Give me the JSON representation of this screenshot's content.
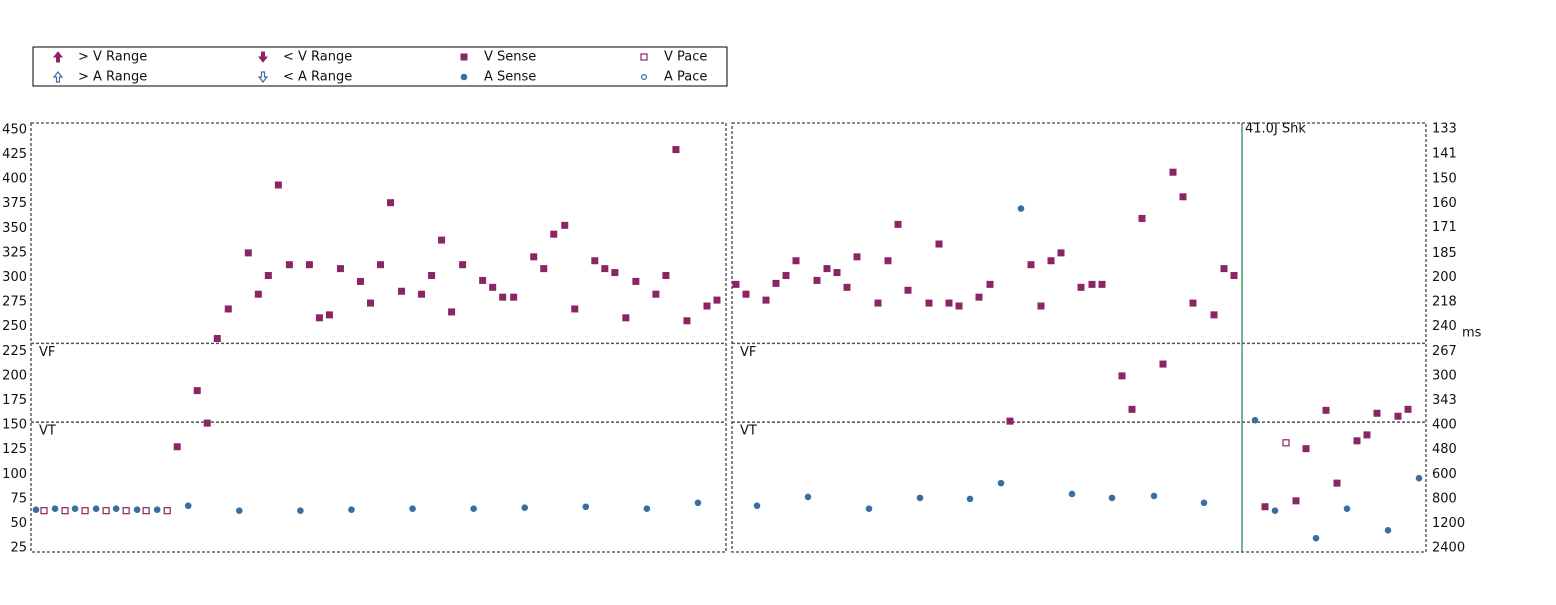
{
  "chart_data": [
    {
      "type": "scatter",
      "xlim": [
        0,
        69.4
      ],
      "ylim": [
        21,
        457
      ],
      "yticks": [
        25,
        50,
        75,
        100,
        125,
        150,
        175,
        200,
        225,
        250,
        275,
        300,
        325,
        350,
        375,
        400,
        425,
        450
      ],
      "zones": [
        {
          "label": "VF",
          "value": 233
        },
        {
          "label": "VT",
          "value": 153
        }
      ],
      "series": [
        {
          "name": "> V Range",
          "color": "#8b2563",
          "marker": "up-filled",
          "x": [],
          "values": []
        },
        {
          "name": "< V Range",
          "color": "#8b2563",
          "marker": "down-filled",
          "x": [],
          "values": []
        },
        {
          "name": "V Sense",
          "color": "#8b2563",
          "marker": "square-filled",
          "x": [
            14.6,
            16.6,
            17.6,
            18.6,
            19.7,
            21.7,
            22.7,
            23.7,
            24.7,
            25.8,
            27.8,
            28.8,
            29.8,
            30.9,
            32.9,
            33.9,
            34.9,
            35.9,
            37.0,
            39.0,
            40.0,
            41.0,
            42.0,
            43.1,
            45.1,
            46.1,
            47.1,
            48.2,
            50.2,
            51.2,
            52.2,
            53.3,
            54.3,
            56.3,
            57.3,
            58.3,
            59.4,
            60.4,
            62.4,
            63.4,
            64.4,
            65.5,
            67.5,
            68.5
          ],
          "values": [
            128,
            185,
            152,
            238,
            268,
            325,
            283,
            302,
            394,
            313,
            313,
            259,
            262,
            309,
            296,
            274,
            313,
            376,
            286,
            283,
            302,
            338,
            265,
            313,
            297,
            290,
            280,
            280,
            321,
            309,
            344,
            353,
            268,
            317,
            309,
            305,
            259,
            296,
            283,
            302,
            430,
            256,
            271,
            277
          ]
        },
        {
          "name": "V Pace",
          "color": "#8b2563",
          "marker": "square-open",
          "x": [
            1.3,
            3.4,
            5.4,
            7.5,
            9.5,
            11.5,
            13.6
          ],
          "values": [
            63,
            63,
            63,
            63,
            63,
            63,
            63
          ]
        },
        {
          "name": "> A Range",
          "color": "#3b6e9e",
          "marker": "up-open",
          "x": [],
          "values": []
        },
        {
          "name": "< A Range",
          "color": "#3b6e9e",
          "marker": "down-open",
          "x": [],
          "values": []
        },
        {
          "name": "A Sense",
          "color": "#3b6e9e",
          "marker": "circle-filled",
          "x": [
            0.5,
            2.4,
            4.4,
            6.5,
            8.5,
            10.6,
            12.6,
            15.7,
            20.8,
            26.9,
            32.0,
            38.1,
            44.2,
            49.3,
            55.4,
            61.5,
            66.6
          ],
          "values": [
            64,
            65,
            65,
            65,
            65,
            64,
            64,
            68,
            63,
            63,
            64,
            65,
            65,
            66,
            67,
            65,
            71
          ]
        },
        {
          "name": "A Pace",
          "color": "#3b6e9e",
          "marker": "circle-open",
          "x": [],
          "values": []
        }
      ]
    },
    {
      "type": "scatter",
      "xlim": [
        0,
        69.4
      ],
      "ylim": [
        21,
        457
      ],
      "y2ticks": [
        133,
        141,
        150,
        160,
        171,
        185,
        200,
        218,
        240,
        267,
        300,
        343,
        400,
        480,
        600,
        800,
        1200,
        2400
      ],
      "y2scale": "reciprocal",
      "y2factor": 60000,
      "y2label": "ms",
      "zones": [
        {
          "label": "VF",
          "value": 233
        },
        {
          "label": "VT",
          "value": 153
        }
      ],
      "annotation": {
        "text": "41.0J Shk",
        "x": 51.0,
        "color": "#2e8b57"
      },
      "series": [
        {
          "name": "> V Range",
          "color": "#8b2563",
          "marker": "up-filled",
          "x": [],
          "values": []
        },
        {
          "name": "< V Range",
          "color": "#8b2563",
          "marker": "down-filled",
          "x": [],
          "values": []
        },
        {
          "name": "V Sense",
          "color": "#8b2563",
          "marker": "square-filled",
          "x": [
            0.4,
            1.4,
            3.4,
            4.4,
            5.4,
            6.4,
            8.5,
            9.5,
            10.5,
            11.5,
            12.5,
            14.6,
            15.6,
            16.6,
            17.6,
            19.7,
            20.7,
            21.7,
            22.7,
            24.7,
            25.8,
            27.8,
            29.9,
            30.9,
            31.9,
            32.9,
            34.9,
            36.0,
            37.0,
            39.0,
            40.0,
            41.0,
            43.1,
            44.1,
            45.1,
            46.1,
            48.2,
            49.2,
            50.2,
            53.3,
            56.4,
            57.4,
            59.4,
            60.5,
            62.5,
            63.5,
            64.5,
            66.6,
            67.6
          ],
          "values": [
            293,
            283,
            277,
            294,
            302,
            317,
            297,
            309,
            305,
            290,
            321,
            274,
            317,
            354,
            287,
            274,
            334,
            274,
            271,
            280,
            293,
            154,
            313,
            271,
            317,
            325,
            290,
            293,
            293,
            200,
            166,
            360,
            212,
            407,
            382,
            274,
            262,
            309,
            302,
            67,
            73,
            126,
            165,
            91,
            134,
            140,
            162,
            159,
            166
          ]
        },
        {
          "name": "V Pace",
          "color": "#8b2563",
          "marker": "square-open",
          "x": [
            55.4
          ],
          "values": [
            132
          ]
        },
        {
          "name": "> A Range",
          "color": "#3b6e9e",
          "marker": "up-open",
          "x": [],
          "values": []
        },
        {
          "name": "< A Range",
          "color": "#3b6e9e",
          "marker": "down-open",
          "x": [],
          "values": []
        },
        {
          "name": "A Sense",
          "color": "#3b6e9e",
          "marker": "circle-filled",
          "x": [
            2.5,
            7.6,
            13.7,
            18.8,
            23.8,
            26.9,
            28.9,
            34.0,
            38.0,
            42.2,
            47.2,
            52.3,
            54.3,
            58.4,
            61.5,
            65.6,
            68.7
          ],
          "values": [
            68,
            77,
            65,
            76,
            75,
            91,
            370,
            80,
            76,
            78,
            71,
            155,
            63,
            35,
            65,
            43,
            96
          ]
        },
        {
          "name": "A Pace",
          "color": "#3b6e9e",
          "marker": "circle-open",
          "x": [],
          "values": []
        }
      ]
    }
  ]
}
